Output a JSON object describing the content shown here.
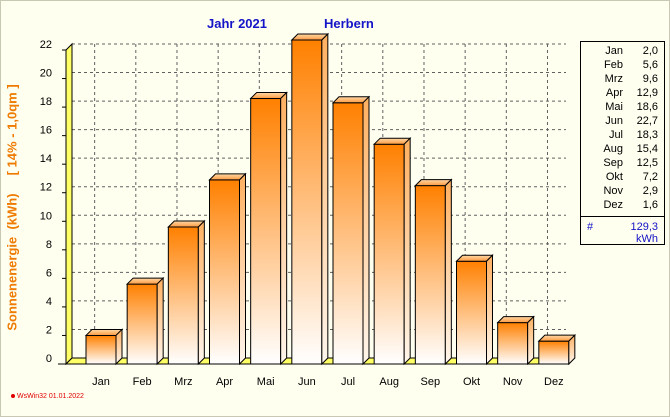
{
  "header": {
    "year_label": "Jahr  2021",
    "place": "Herbern"
  },
  "axis": {
    "ylabel": "Sonnenenergie  (kWh)     [ 14% - 1,0qm ]"
  },
  "legend": {
    "rows": [
      {
        "m": "Jan",
        "v": "2,0"
      },
      {
        "m": "Feb",
        "v": "5,6"
      },
      {
        "m": "Mrz",
        "v": "9,6"
      },
      {
        "m": "Apr",
        "v": "12,9"
      },
      {
        "m": "Mai",
        "v": "18,6"
      },
      {
        "m": "Jun",
        "v": "22,7"
      },
      {
        "m": "Jul",
        "v": "18,3"
      },
      {
        "m": "Aug",
        "v": "15,4"
      },
      {
        "m": "Sep",
        "v": "12,5"
      },
      {
        "m": "Okt",
        "v": "7,2"
      },
      {
        "m": "Nov",
        "v": "2,9"
      },
      {
        "m": "Dez",
        "v": "1,6"
      }
    ],
    "sum_symbol": "#",
    "sum_value": "129,3",
    "sum_unit": "kWh"
  },
  "footer": "WsWin32  01.01.2022",
  "chart_data": {
    "type": "bar",
    "title": "Jahr  2021          Herbern",
    "ylabel": "Sonnenenergie  (kWh)     [ 14% - 1,0qm ]",
    "xlabel": "",
    "categories": [
      "Jan",
      "Feb",
      "Mrz",
      "Apr",
      "Mai",
      "Jun",
      "Jul",
      "Aug",
      "Sep",
      "Okt",
      "Nov",
      "Dez"
    ],
    "values": [
      2.0,
      5.6,
      9.6,
      12.9,
      18.6,
      22.7,
      18.3,
      15.4,
      12.5,
      7.2,
      2.9,
      1.6
    ],
    "ylim": [
      0,
      22
    ],
    "yticks": [
      "0",
      "2",
      "4",
      "6",
      "8",
      "10",
      "12",
      "14",
      "16",
      "18",
      "20",
      "22"
    ],
    "grid": true,
    "legend_position": "right",
    "colors": {
      "bar_top": "#ff8000",
      "bar_bottom": "#ffffff",
      "floor": "#ffff66",
      "title": "#1414c8",
      "ylabel": "#ee7a00"
    }
  }
}
